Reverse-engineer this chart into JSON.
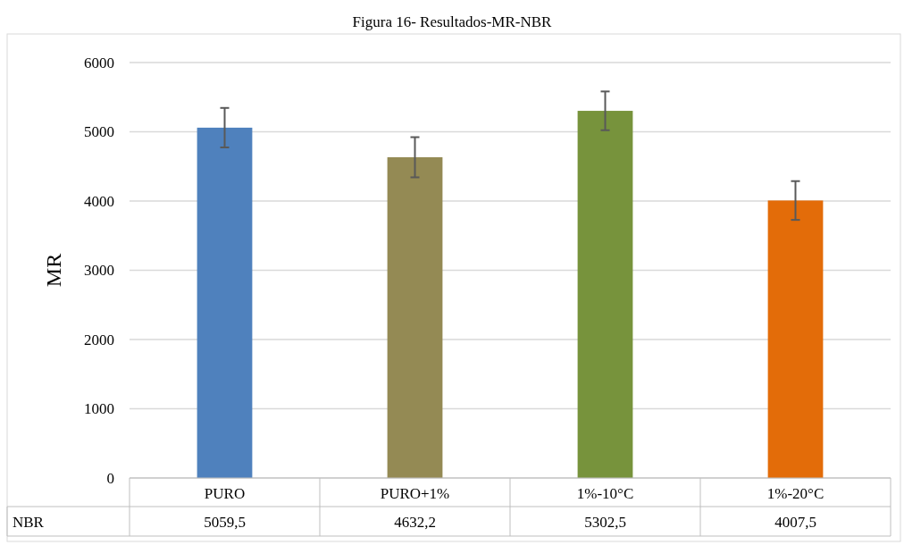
{
  "chart_data": {
    "type": "bar",
    "title": "Figura 16- Resultados-MR-NBR",
    "ylabel": "MR",
    "categories": [
      "PURO",
      "PURO+1%",
      "1%-10°C",
      "1%-20°C"
    ],
    "series": [
      {
        "name": "NBR",
        "colors": [
          "#4f81bd",
          "#948a54",
          "#77933c",
          "#e36c09"
        ],
        "values": [
          5059.5,
          4632.2,
          5302.5,
          4007.5
        ],
        "errors": [
          285,
          290,
          280,
          280
        ],
        "value_labels": [
          "5059,5",
          "4632,2",
          "5302,5",
          "4007,5"
        ]
      }
    ],
    "ylim": [
      0,
      6000
    ],
    "yticks": [
      0,
      1000,
      2000,
      3000,
      4000,
      5000,
      6000
    ],
    "grid": "y"
  }
}
